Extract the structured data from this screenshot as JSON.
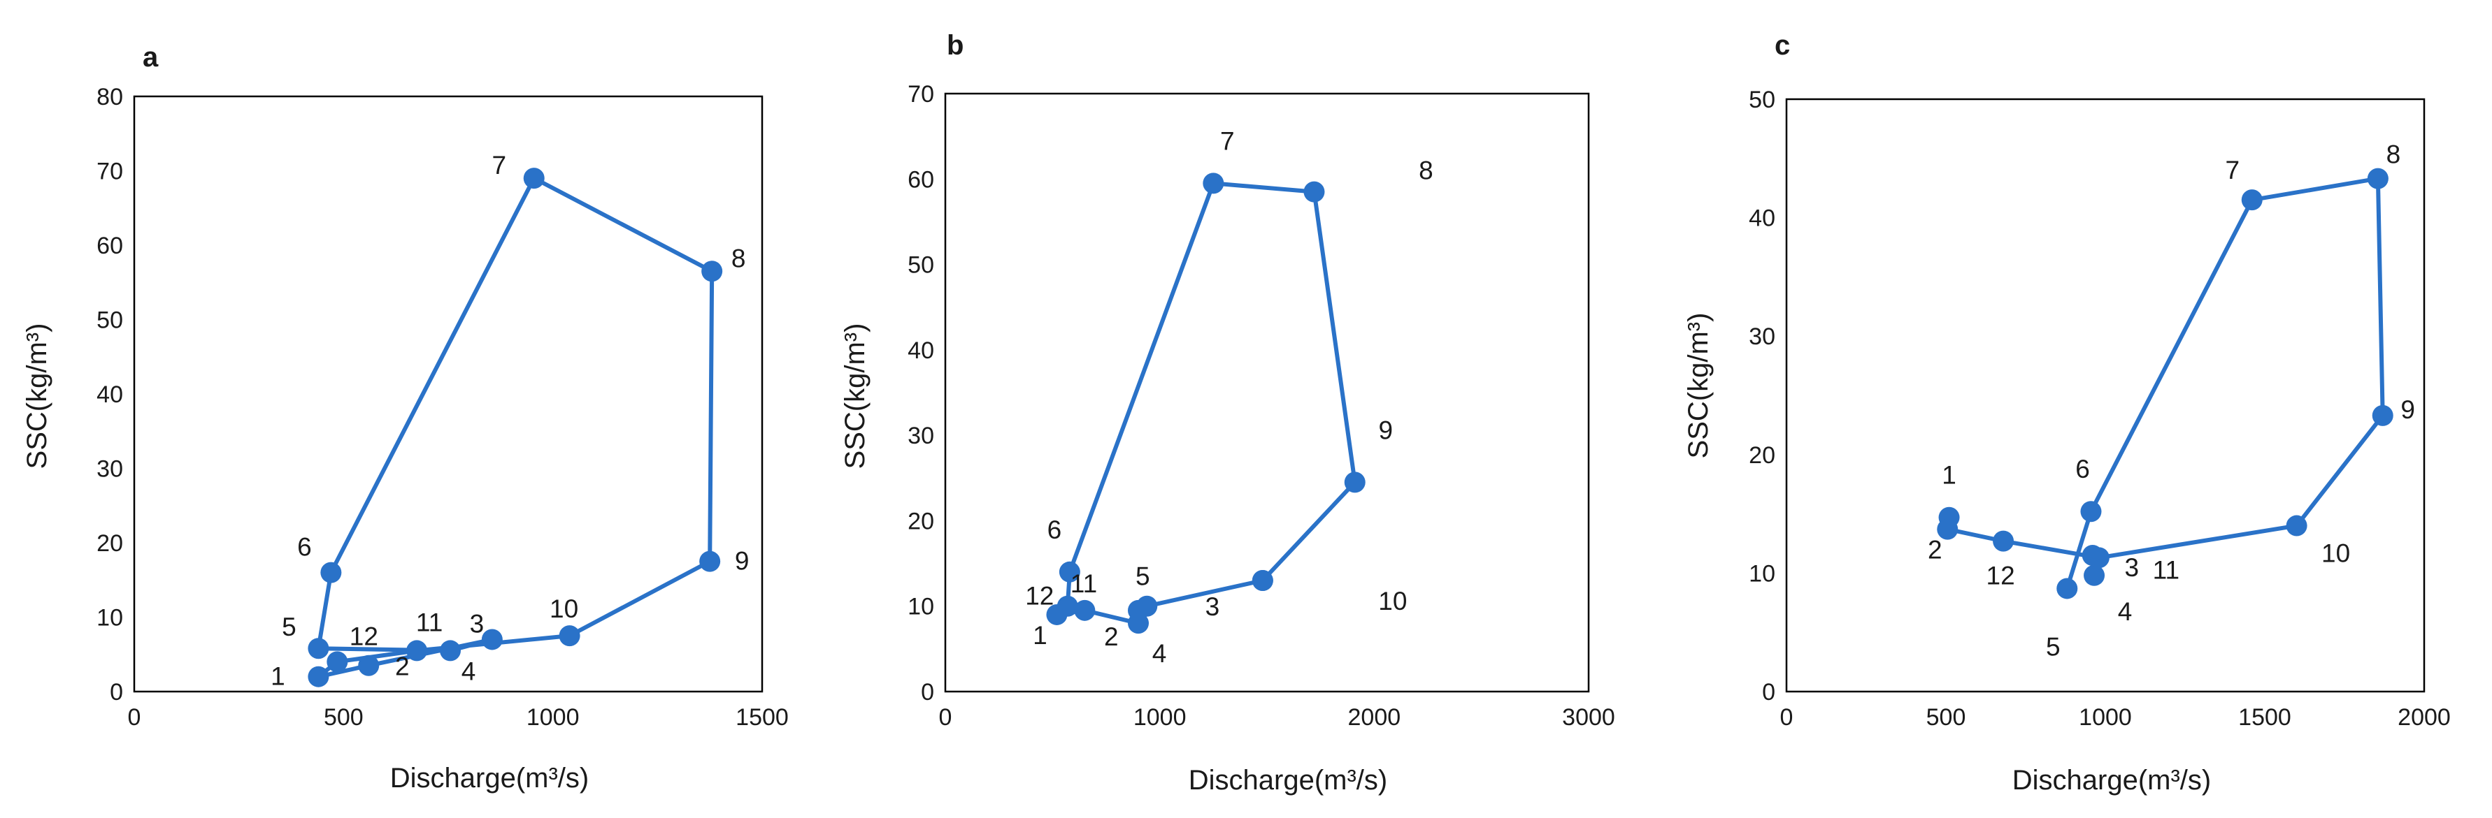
{
  "chart_data": [
    {
      "type": "scatter",
      "panel": "a",
      "title": "",
      "xlabel": "Discharge(m³/s)",
      "ylabel": "SSC(kg/m³)",
      "xlim": [
        0,
        1500
      ],
      "ylim": [
        0,
        80
      ],
      "xticks": [
        0,
        500,
        1000,
        1500
      ],
      "yticks": [
        0,
        10,
        20,
        30,
        40,
        50,
        60,
        70,
        80
      ],
      "grid": false,
      "connected": true,
      "marker": "circle",
      "color": "#2a72c8",
      "points": [
        {
          "x": 440,
          "y": 2.0,
          "label": "1"
        },
        {
          "x": 560,
          "y": 3.5,
          "label": "2"
        },
        {
          "x": 855,
          "y": 7.0,
          "label": "3"
        },
        {
          "x": 755,
          "y": 5.5,
          "label": "4"
        },
        {
          "x": 440,
          "y": 5.8,
          "label": "5"
        },
        {
          "x": 470,
          "y": 16.0,
          "label": "6"
        },
        {
          "x": 955,
          "y": 69.0,
          "label": "7"
        },
        {
          "x": 1380,
          "y": 56.5,
          "label": "8"
        },
        {
          "x": 1375,
          "y": 17.5,
          "label": "9"
        },
        {
          "x": 1040,
          "y": 7.5,
          "label": "10"
        },
        {
          "x": 675,
          "y": 5.5,
          "label": "11"
        },
        {
          "x": 485,
          "y": 4.0,
          "label": "12"
        }
      ],
      "path_order": [
        "1",
        "2",
        "3",
        "4",
        "5",
        "6",
        "7",
        "8",
        "9",
        "10",
        "11",
        "12",
        "1"
      ]
    },
    {
      "type": "scatter",
      "panel": "b",
      "title": "",
      "xlabel": "Discharge(m³/s)",
      "ylabel": "SSC(kg/m³)",
      "xlim": [
        0,
        3000
      ],
      "ylim": [
        0,
        70
      ],
      "xticks": [
        0,
        1000,
        2000,
        3000
      ],
      "yticks": [
        0,
        10,
        20,
        30,
        40,
        50,
        60,
        70
      ],
      "grid": false,
      "connected": true,
      "marker": "circle",
      "color": "#2a72c8",
      "points": [
        {
          "x": 520,
          "y": 9.0,
          "label": "1"
        },
        {
          "x": 650,
          "y": 9.5,
          "label": "2"
        },
        {
          "x": 1480,
          "y": 13.0,
          "label": "3"
        },
        {
          "x": 900,
          "y": 8.0,
          "label": "4"
        },
        {
          "x": 940,
          "y": 10.0,
          "label": "5"
        },
        {
          "x": 580,
          "y": 14.0,
          "label": "6"
        },
        {
          "x": 1250,
          "y": 59.5,
          "label": "7"
        },
        {
          "x": 1720,
          "y": 58.5,
          "label": "8"
        },
        {
          "x": 1910,
          "y": 24.5,
          "label": "9"
        },
        {
          "x": 1480,
          "y": 13.0,
          "label": "10"
        },
        {
          "x": 900,
          "y": 9.5,
          "label": "11"
        },
        {
          "x": 570,
          "y": 10.0,
          "label": "12"
        }
      ],
      "path_order": [
        "1",
        "12",
        "6",
        "7",
        "8",
        "9",
        "3",
        "5",
        "11",
        "4",
        "2",
        "1"
      ]
    },
    {
      "type": "scatter",
      "panel": "c",
      "title": "",
      "xlabel": "Discharge(m³/s)",
      "ylabel": "SSC(kg/m³)",
      "xlim": [
        0,
        2000
      ],
      "ylim": [
        0,
        50
      ],
      "xticks": [
        0,
        500,
        1000,
        1500,
        2000
      ],
      "yticks": [
        0,
        10,
        20,
        30,
        40,
        50
      ],
      "grid": false,
      "connected": true,
      "marker": "circle",
      "color": "#2a72c8",
      "points": [
        {
          "x": 510,
          "y": 14.7,
          "label": "1"
        },
        {
          "x": 505,
          "y": 13.7,
          "label": "2"
        },
        {
          "x": 960,
          "y": 11.5,
          "label": "3"
        },
        {
          "x": 965,
          "y": 9.8,
          "label": "4"
        },
        {
          "x": 880,
          "y": 8.7,
          "label": "5"
        },
        {
          "x": 955,
          "y": 15.2,
          "label": "6"
        },
        {
          "x": 1460,
          "y": 41.5,
          "label": "7"
        },
        {
          "x": 1855,
          "y": 43.3,
          "label": "8"
        },
        {
          "x": 1870,
          "y": 23.3,
          "label": "9"
        },
        {
          "x": 1600,
          "y": 14.0,
          "label": "10"
        },
        {
          "x": 980,
          "y": 11.3,
          "label": "11"
        },
        {
          "x": 680,
          "y": 12.7,
          "label": "12"
        }
      ],
      "path_order": [
        "2",
        "12",
        "11",
        "10",
        "9",
        "8",
        "7",
        "6",
        "5"
      ]
    }
  ]
}
